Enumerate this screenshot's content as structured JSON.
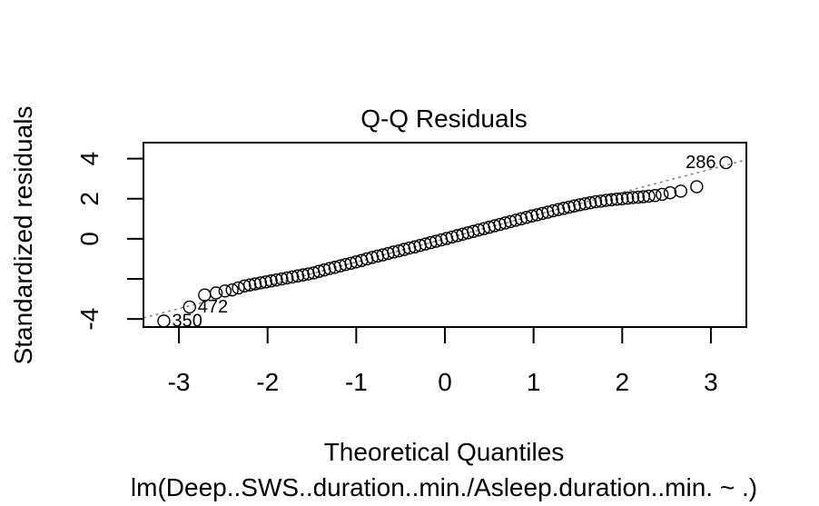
{
  "chart_data": {
    "type": "scatter",
    "title": "Q-Q Residuals",
    "xlabel": "Theoretical Quantiles",
    "ylabel": "Standardized residuals",
    "sublabel": "lm(Deep..SWS..duration..min./Asleep.duration..min. ~ .)",
    "xlim": [
      -3.4,
      3.4
    ],
    "ylim": [
      -4.4,
      4.8
    ],
    "x_ticks": [
      -3,
      -2,
      -1,
      0,
      1,
      2,
      3
    ],
    "y_ticks": [
      -4,
      -2,
      0,
      2,
      4
    ],
    "y_tick_labels": [
      "-4",
      "",
      "0",
      "2",
      "4"
    ],
    "grid": false,
    "reference_line": {
      "slope": 1.16,
      "intercept": 0.0,
      "style": "dotted",
      "color": "#808080"
    },
    "labeled_points": [
      {
        "label": "286",
        "x": 3.17,
        "y": 3.8
      },
      {
        "label": "472",
        "x": -2.88,
        "y": -3.4
      },
      {
        "label": "350",
        "x": -3.17,
        "y": -4.1
      }
    ],
    "points": [
      [
        -3.17,
        -4.1
      ],
      [
        -2.88,
        -3.4
      ],
      [
        -2.71,
        -2.8
      ],
      [
        -2.58,
        -2.7
      ],
      [
        -2.48,
        -2.6
      ],
      [
        -2.4,
        -2.55
      ],
      [
        -2.33,
        -2.45
      ],
      [
        -2.26,
        -2.35
      ],
      [
        -2.2,
        -2.3
      ],
      [
        -2.14,
        -2.25
      ],
      [
        -2.08,
        -2.2
      ],
      [
        -2.02,
        -2.15
      ],
      [
        -1.96,
        -2.1
      ],
      [
        -1.9,
        -2.05
      ],
      [
        -1.84,
        -2.0
      ],
      [
        -1.78,
        -1.95
      ],
      [
        -1.72,
        -1.9
      ],
      [
        -1.66,
        -1.85
      ],
      [
        -1.6,
        -1.8
      ],
      [
        -1.54,
        -1.75
      ],
      [
        -1.48,
        -1.7
      ],
      [
        -1.42,
        -1.62
      ],
      [
        -1.36,
        -1.55
      ],
      [
        -1.3,
        -1.48
      ],
      [
        -1.24,
        -1.42
      ],
      [
        -1.18,
        -1.35
      ],
      [
        -1.12,
        -1.28
      ],
      [
        -1.06,
        -1.22
      ],
      [
        -1.0,
        -1.15
      ],
      [
        -0.94,
        -1.08
      ],
      [
        -0.88,
        -1.0
      ],
      [
        -0.82,
        -0.93
      ],
      [
        -0.76,
        -0.86
      ],
      [
        -0.7,
        -0.8
      ],
      [
        -0.64,
        -0.73
      ],
      [
        -0.58,
        -0.66
      ],
      [
        -0.52,
        -0.6
      ],
      [
        -0.46,
        -0.53
      ],
      [
        -0.4,
        -0.46
      ],
      [
        -0.34,
        -0.4
      ],
      [
        -0.28,
        -0.33
      ],
      [
        -0.22,
        -0.26
      ],
      [
        -0.16,
        -0.19
      ],
      [
        -0.1,
        -0.12
      ],
      [
        -0.04,
        -0.05
      ],
      [
        0.02,
        0.02
      ],
      [
        0.08,
        0.09
      ],
      [
        0.14,
        0.16
      ],
      [
        0.2,
        0.23
      ],
      [
        0.26,
        0.3
      ],
      [
        0.32,
        0.37
      ],
      [
        0.38,
        0.44
      ],
      [
        0.44,
        0.51
      ],
      [
        0.5,
        0.58
      ],
      [
        0.56,
        0.65
      ],
      [
        0.62,
        0.72
      ],
      [
        0.68,
        0.79
      ],
      [
        0.74,
        0.86
      ],
      [
        0.8,
        0.93
      ],
      [
        0.86,
        1.0
      ],
      [
        0.92,
        1.07
      ],
      [
        0.98,
        1.14
      ],
      [
        1.04,
        1.2
      ],
      [
        1.1,
        1.27
      ],
      [
        1.16,
        1.33
      ],
      [
        1.22,
        1.4
      ],
      [
        1.28,
        1.46
      ],
      [
        1.34,
        1.52
      ],
      [
        1.4,
        1.58
      ],
      [
        1.46,
        1.64
      ],
      [
        1.52,
        1.7
      ],
      [
        1.58,
        1.75
      ],
      [
        1.64,
        1.8
      ],
      [
        1.7,
        1.85
      ],
      [
        1.76,
        1.88
      ],
      [
        1.82,
        1.92
      ],
      [
        1.88,
        1.95
      ],
      [
        1.94,
        1.98
      ],
      [
        2.0,
        2.0
      ],
      [
        2.06,
        2.03
      ],
      [
        2.12,
        2.06
      ],
      [
        2.18,
        2.08
      ],
      [
        2.24,
        2.1
      ],
      [
        2.3,
        2.13
      ],
      [
        2.37,
        2.16
      ],
      [
        2.45,
        2.22
      ],
      [
        2.54,
        2.3
      ],
      [
        2.66,
        2.38
      ],
      [
        2.84,
        2.6
      ],
      [
        3.17,
        3.8
      ]
    ]
  }
}
